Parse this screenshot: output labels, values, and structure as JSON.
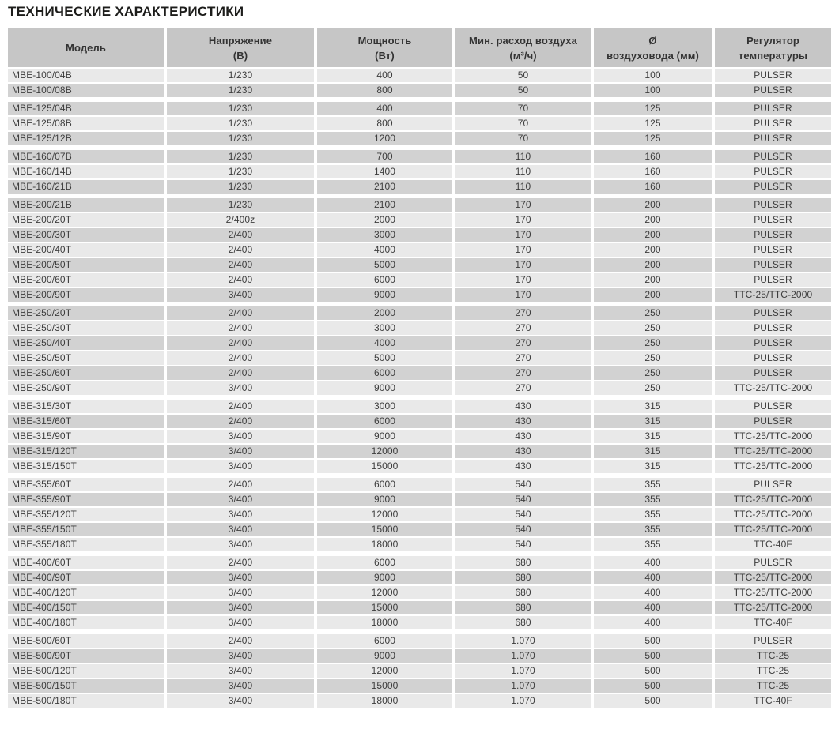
{
  "page_title": "ТЕХНИЧЕСКИЕ ХАРАКТЕРИСТИКИ",
  "colors": {
    "header_bg": "#c6c6c6",
    "row_light": "#e9e9e9",
    "row_dark": "#d2d2d2",
    "text": "#3d3d3d",
    "header_text": "#333333",
    "title_text": "#1d1d1b"
  },
  "table": {
    "columns": [
      {
        "key": "model",
        "label_lines": [
          "Модель"
        ]
      },
      {
        "key": "voltage",
        "label_lines": [
          "Напряжение",
          "(В)"
        ]
      },
      {
        "key": "power",
        "label_lines": [
          "Мощность",
          "(Вт)"
        ]
      },
      {
        "key": "airflow",
        "label_lines": [
          "Мин. расход воздуха",
          "(м³/ч)"
        ]
      },
      {
        "key": "duct-diameter",
        "label_lines": [
          "Ø",
          "воздуховода (мм)"
        ]
      },
      {
        "key": "temp-regulator",
        "label_lines": [
          "Регулятор",
          "температуры"
        ]
      }
    ],
    "groups": [
      {
        "rows": [
          [
            "MBE-100/04B",
            "1/230",
            "400",
            "50",
            "100",
            "PULSER"
          ],
          [
            "MBE-100/08B",
            "1/230",
            "800",
            "50",
            "100",
            "PULSER"
          ]
        ]
      },
      {
        "rows": [
          [
            "MBE-125/04B",
            "1/230",
            "400",
            "70",
            "125",
            "PULSER"
          ],
          [
            "MBE-125/08B",
            "1/230",
            "800",
            "70",
            "125",
            "PULSER"
          ],
          [
            "MBE-125/12B",
            "1/230",
            "1200",
            "70",
            "125",
            "PULSER"
          ]
        ]
      },
      {
        "rows": [
          [
            "MBE-160/07B",
            "1/230",
            "700",
            "110",
            "160",
            "PULSER"
          ],
          [
            "MBE-160/14B",
            "1/230",
            "1400",
            "110",
            "160",
            "PULSER"
          ],
          [
            "MBE-160/21B",
            "1/230",
            "2100",
            "110",
            "160",
            "PULSER"
          ]
        ]
      },
      {
        "rows": [
          [
            "MBE-200/21B",
            "1/230",
            "2100",
            "170",
            "200",
            "PULSER"
          ],
          [
            "MBE-200/20T",
            "2/400z",
            "2000",
            "170",
            "200",
            "PULSER"
          ],
          [
            "MBE-200/30T",
            "2/400",
            "3000",
            "170",
            "200",
            "PULSER"
          ],
          [
            "MBE-200/40T",
            "2/400",
            "4000",
            "170",
            "200",
            "PULSER"
          ],
          [
            "MBE-200/50T",
            "2/400",
            "5000",
            "170",
            "200",
            "PULSER"
          ],
          [
            "MBE-200/60T",
            "2/400",
            "6000",
            "170",
            "200",
            "PULSER"
          ],
          [
            "MBE-200/90T",
            "3/400",
            "9000",
            "170",
            "200",
            "TTC-25/TTC-2000"
          ]
        ]
      },
      {
        "rows": [
          [
            "MBE-250/20T",
            "2/400",
            "2000",
            "270",
            "250",
            "PULSER"
          ],
          [
            "MBE-250/30T",
            "2/400",
            "3000",
            "270",
            "250",
            "PULSER"
          ],
          [
            "MBE-250/40T",
            "2/400",
            "4000",
            "270",
            "250",
            "PULSER"
          ],
          [
            "MBE-250/50T",
            "2/400",
            "5000",
            "270",
            "250",
            "PULSER"
          ],
          [
            "MBE-250/60T",
            "2/400",
            "6000",
            "270",
            "250",
            "PULSER"
          ],
          [
            "MBE-250/90T",
            "3/400",
            "9000",
            "270",
            "250",
            "TTC-25/TTC-2000"
          ]
        ]
      },
      {
        "rows": [
          [
            "MBE-315/30T",
            "2/400",
            "3000",
            "430",
            "315",
            "PULSER"
          ],
          [
            "MBE-315/60T",
            "2/400",
            "6000",
            "430",
            "315",
            "PULSER"
          ],
          [
            "MBE-315/90T",
            "3/400",
            "9000",
            "430",
            "315",
            "TTC-25/TTC-2000"
          ],
          [
            "MBE-315/120T",
            "3/400",
            "12000",
            "430",
            "315",
            "TTC-25/TTC-2000"
          ],
          [
            "MBE-315/150T",
            "3/400",
            "15000",
            "430",
            "315",
            "TTC-25/TTC-2000"
          ]
        ]
      },
      {
        "rows": [
          [
            "MBE-355/60T",
            "2/400",
            "6000",
            "540",
            "355",
            "PULSER"
          ],
          [
            "MBE-355/90T",
            "3/400",
            "9000",
            "540",
            "355",
            "TTC-25/TTC-2000"
          ],
          [
            "MBE-355/120T",
            "3/400",
            "12000",
            "540",
            "355",
            "TTC-25/TTC-2000"
          ],
          [
            "MBE-355/150T",
            "3/400",
            "15000",
            "540",
            "355",
            "TTC-25/TTC-2000"
          ],
          [
            "MBE-355/180T",
            "3/400",
            "18000",
            "540",
            "355",
            "TTC-40F"
          ]
        ]
      },
      {
        "rows": [
          [
            "MBE-400/60T",
            "2/400",
            "6000",
            "680",
            "400",
            "PULSER"
          ],
          [
            "MBE-400/90T",
            "3/400",
            "9000",
            "680",
            "400",
            "TTC-25/TTC-2000"
          ],
          [
            "MBE-400/120T",
            "3/400",
            "12000",
            "680",
            "400",
            "TTC-25/TTC-2000"
          ],
          [
            "MBE-400/150T",
            "3/400",
            "15000",
            "680",
            "400",
            "TTC-25/TTC-2000"
          ],
          [
            "MBE-400/180T",
            "3/400",
            "18000",
            "680",
            "400",
            "TTC-40F"
          ]
        ]
      },
      {
        "rows": [
          [
            "MBE-500/60T",
            "2/400",
            "6000",
            "1.070",
            "500",
            "PULSER"
          ],
          [
            "MBE-500/90T",
            "3/400",
            "9000",
            "1.070",
            "500",
            "TTC-25"
          ],
          [
            "MBE-500/120T",
            "3/400",
            "12000",
            "1.070",
            "500",
            "TTC-25"
          ],
          [
            "MBE-500/150T",
            "3/400",
            "15000",
            "1.070",
            "500",
            "TTC-25"
          ],
          [
            "MBE-500/180T",
            "3/400",
            "18000",
            "1.070",
            "500",
            "TTC-40F"
          ]
        ]
      }
    ]
  }
}
